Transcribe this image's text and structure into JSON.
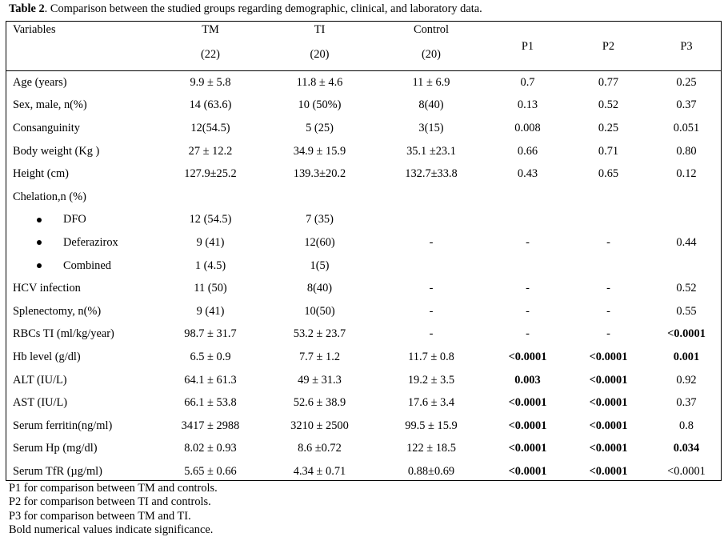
{
  "caption": {
    "label": "Table 2",
    "text": ". Comparison between the studied groups regarding demographic, clinical, and laboratory data."
  },
  "header": {
    "variables": "Variables",
    "tm": "TM",
    "tm_n": "(22)",
    "ti": "TI",
    "ti_n": "(20)",
    "control": "Control",
    "control_n": "(20)",
    "p1": "P1",
    "p2": "P2",
    "p3": "P3"
  },
  "rows": [
    {
      "label": "Age (years)",
      "tm": "9.9 ± 5.8",
      "ti": "11.8 ± 4.6",
      "control": "11 ± 6.9",
      "p1": "0.7",
      "p2": "0.77",
      "p3": "0.25"
    },
    {
      "label": "Sex, male, n(%)",
      "tm": "14 (63.6)",
      "ti": "10 (50%)",
      "control": "8(40)",
      "p1": "0.13",
      "p2": "0.52",
      "p3": "0.37"
    },
    {
      "label": "Consanguinity",
      "tm": "12(54.5)",
      "ti": "5 (25)",
      "control": "3(15)",
      "p1": "0.008",
      "p2": "0.25",
      "p3": "0.051"
    },
    {
      "label": "Body weight (Kg )",
      "tm": "27 ± 12.2",
      "ti": "34.9 ± 15.9",
      "control": "35.1 ±23.1",
      "p1": "0.66",
      "p2": "0.71",
      "p3": "0.80"
    },
    {
      "label": "Height (cm)",
      "tm": "127.9±25.2",
      "ti": "139.3±20.2",
      "control": "132.7±33.8",
      "p1": "0.43",
      "p2": "0.65",
      "p3": "0.12"
    },
    {
      "label": "Chelation,n (%)",
      "tm": "",
      "ti": "",
      "control": "",
      "p1": "",
      "p2": "",
      "p3": ""
    },
    {
      "label": "DFO",
      "tm": "12 (54.5)",
      "ti": "7 (35)",
      "control": "",
      "p1": "",
      "p2": "",
      "p3": ""
    },
    {
      "label": "Deferazirox",
      "tm": "9 (41)",
      "ti": "12(60)",
      "control": "-",
      "p1": "-",
      "p2": "-",
      "p3": "0.44"
    },
    {
      "label": "Combined",
      "tm": "1 (4.5)",
      "ti": "1(5)",
      "control": "",
      "p1": "",
      "p2": "",
      "p3": ""
    },
    {
      "label": "HCV infection",
      "tm": "11 (50)",
      "ti": "8(40)",
      "control": "-",
      "p1": "-",
      "p2": "-",
      "p3": "0.52"
    },
    {
      "label": "Splenectomy, n(%)",
      "tm": "9 (41)",
      "ti": "10(50)",
      "control": "-",
      "p1": "-",
      "p2": "-",
      "p3": "0.55"
    },
    {
      "label": "RBCs TI (ml/kg/year)",
      "tm": "98.7 ± 31.7",
      "ti": "53.2 ± 23.7",
      "control": "-",
      "p1": "-",
      "p2": "-",
      "p3": "<0.0001"
    },
    {
      "label": "Hb level (g/dl)",
      "tm": "6.5 ± 0.9",
      "ti": "7.7 ± 1.2",
      "control": "11.7 ± 0.8",
      "p1": "<0.0001",
      "p2": "<0.0001",
      "p3": "0.001"
    },
    {
      "label": "ALT (IU/L)",
      "tm": "64.1 ± 61.3",
      "ti": "49 ± 31.3",
      "control": "19.2 ± 3.5",
      "p1": "0.003",
      "p2": "<0.0001",
      "p3": "0.92"
    },
    {
      "label": "AST (IU/L)",
      "tm": "66.1 ± 53.8",
      "ti": "52.6 ± 38.9",
      "control": "17.6 ± 3.4",
      "p1": "<0.0001",
      "p2": "<0.0001",
      "p3": "0.37"
    },
    {
      "label": "Serum ferritin(ng/ml)",
      "tm": "3417 ± 2988",
      "ti": "3210 ± 2500",
      "control": "99.5 ± 15.9",
      "p1": "<0.0001",
      "p2": "<0.0001",
      "p3": "0.8"
    },
    {
      "label": "Serum Hp (mg/dl)",
      "tm": "8.02 ± 0.93",
      "ti": "8.6 ±0.72",
      "control": "122 ± 18.5",
      "p1": "<0.0001",
      "p2": "<0.0001",
      "p3": "0.034"
    },
    {
      "label": "Serum TfR (µg/ml)",
      "tm": "5.65 ± 0.66",
      "ti": "4.34 ± 0.71",
      "control": "0.88±0.69",
      "p1": "<0.0001",
      "p2": "<0.0001",
      "p3": "<0.0001"
    }
  ],
  "notes": [
    "P1 for comparison between TM and controls.",
    "P2 for comparison between TI and controls.",
    "P3 for comparison between TM and TI.",
    "Bold numerical values indicate significance."
  ]
}
